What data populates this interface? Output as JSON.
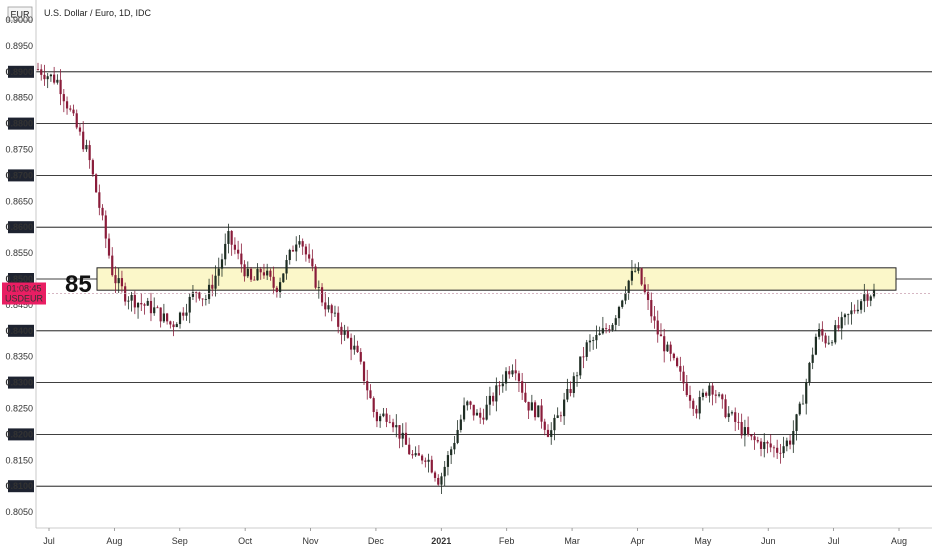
{
  "header": {
    "symbol_badge": "EUR",
    "title": "U.S. Dollar / Euro, 1D, IDC"
  },
  "colors": {
    "up": "#1e2d23",
    "down": "#8a1c3a",
    "grid": "#000000",
    "zone_fill": "#fbf7c9",
    "zone_stroke": "#222222",
    "price_tag_bg": "#e91e63",
    "axis_label_bg": "#1e2330"
  },
  "chart_data": {
    "type": "candlestick",
    "ylim": [
      0.8,
      0.9
    ],
    "y_ticks": [
      "0.9000",
      "0.8950",
      "0.8900",
      "0.8850",
      "0.8800",
      "0.8750",
      "0.8700",
      "0.8650",
      "0.8600",
      "0.8550",
      "0.8500",
      "0.8450",
      "0.8400",
      "0.8350",
      "0.8300",
      "0.8250",
      "0.8200",
      "0.8150",
      "0.8100",
      "0.8050"
    ],
    "highlighted_ticks": [
      "0.8900",
      "0.8800",
      "0.8700",
      "0.8600",
      "0.8500",
      "0.8400",
      "0.8300",
      "0.8200",
      "0.8100"
    ],
    "x_labels": [
      "Jul",
      "Aug",
      "Sep",
      "Oct",
      "Nov",
      "Dec",
      "2021",
      "Feb",
      "Mar",
      "Apr",
      "May",
      "Jun",
      "Jul",
      "Aug"
    ],
    "bold_x_labels": [
      "2021"
    ],
    "grid_lines": [
      0.89,
      0.88,
      0.87,
      0.86,
      0.85,
      0.84,
      0.83,
      0.82,
      0.81
    ],
    "zone": {
      "from": 0.849,
      "to": 0.851,
      "label": "85"
    },
    "current_price_tag": {
      "countdown": "01:08:45",
      "symbol": "USDEUR",
      "price": 0.8472
    },
    "close_path": [
      [
        0,
        0.8905
      ],
      [
        12,
        0.8882
      ],
      [
        22,
        0.88
      ],
      [
        30,
        0.874
      ],
      [
        38,
        0.862
      ],
      [
        45,
        0.8505
      ],
      [
        52,
        0.847
      ],
      [
        60,
        0.8455
      ],
      [
        70,
        0.844
      ],
      [
        80,
        0.841
      ],
      [
        88,
        0.8445
      ],
      [
        95,
        0.848
      ],
      [
        100,
        0.846
      ],
      [
        108,
        0.852
      ],
      [
        114,
        0.858
      ],
      [
        120,
        0.854
      ],
      [
        128,
        0.849
      ],
      [
        134,
        0.852
      ],
      [
        142,
        0.848
      ],
      [
        150,
        0.854
      ],
      [
        156,
        0.859
      ],
      [
        162,
        0.853
      ],
      [
        170,
        0.846
      ],
      [
        176,
        0.843
      ],
      [
        182,
        0.84
      ],
      [
        190,
        0.836
      ],
      [
        196,
        0.83
      ],
      [
        202,
        0.823
      ],
      [
        210,
        0.824
      ],
      [
        218,
        0.819
      ],
      [
        225,
        0.815
      ],
      [
        232,
        0.816
      ],
      [
        240,
        0.811
      ],
      [
        248,
        0.818
      ],
      [
        256,
        0.826
      ],
      [
        264,
        0.823
      ],
      [
        272,
        0.827
      ],
      [
        280,
        0.832
      ],
      [
        285,
        0.834
      ],
      [
        292,
        0.826
      ],
      [
        300,
        0.824
      ],
      [
        306,
        0.82
      ],
      [
        312,
        0.824
      ],
      [
        320,
        0.83
      ],
      [
        328,
        0.837
      ],
      [
        336,
        0.839
      ],
      [
        344,
        0.842
      ],
      [
        352,
        0.849
      ],
      [
        358,
        0.852
      ],
      [
        364,
        0.846
      ],
      [
        370,
        0.84
      ],
      [
        378,
        0.835
      ],
      [
        386,
        0.83
      ],
      [
        394,
        0.825
      ],
      [
        402,
        0.83
      ],
      [
        410,
        0.825
      ],
      [
        418,
        0.822
      ],
      [
        426,
        0.819
      ],
      [
        434,
        0.818
      ],
      [
        442,
        0.817
      ],
      [
        450,
        0.819
      ],
      [
        456,
        0.825
      ],
      [
        460,
        0.831
      ],
      [
        466,
        0.84
      ],
      [
        472,
        0.838
      ],
      [
        480,
        0.841
      ],
      [
        488,
        0.844
      ],
      [
        494,
        0.847
      ],
      [
        500,
        0.8475
      ]
    ],
    "candle_count": 260,
    "seed": 7
  }
}
